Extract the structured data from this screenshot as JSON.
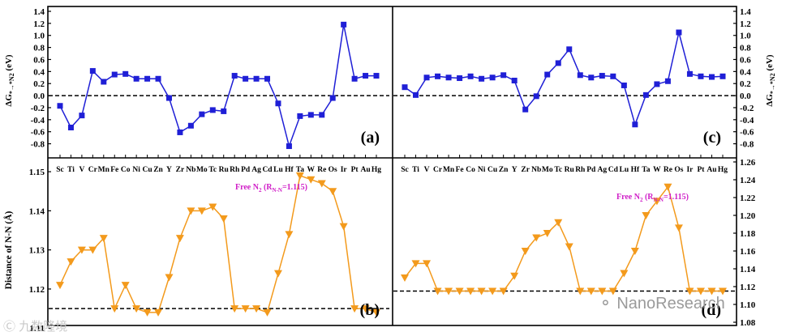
{
  "elements": [
    "Sc",
    "Ti",
    "V",
    "Cr",
    "Mn",
    "Fe",
    "Co",
    "Ni",
    "Cu",
    "Zn",
    "Y",
    "Zr",
    "Nb",
    "Mo",
    "Tc",
    "Ru",
    "Rh",
    "Pd",
    "Ag",
    "Cd",
    "Lu",
    "Hf",
    "Ta",
    "W",
    "Re",
    "Os",
    "Ir",
    "Pt",
    "Au",
    "Hg"
  ],
  "colors": {
    "energy": "#1f1fd6",
    "distance": "#f39a1c",
    "free_label": "#d020c8",
    "ref_line": "#000000"
  },
  "chart_data": [
    {
      "id": "a",
      "panel_label": "(a)",
      "type": "line",
      "title": "",
      "xlabel": "",
      "ylabel": "ΔG*→*N2 (eV)",
      "ylim": [
        -0.9,
        1.4
      ],
      "yticks": [
        -0.8,
        -0.6,
        -0.4,
        -0.2,
        0.0,
        0.2,
        0.4,
        0.6,
        0.8,
        1.0,
        1.2,
        1.4
      ],
      "tick_labels": [
        "-0.8",
        "-0.6",
        "-0.4",
        "-0.2",
        "0.0",
        "0.2",
        "0.4",
        "0.6",
        "0.8",
        "1.0",
        "1.2",
        "1.4"
      ],
      "show_category_ticks": true,
      "reference_line": 0.0,
      "marker": "square",
      "series": [
        {
          "name": "ΔG",
          "values": [
            -0.17,
            -0.53,
            -0.33,
            0.41,
            0.23,
            0.35,
            0.36,
            0.28,
            0.28,
            0.28,
            -0.04,
            -0.61,
            -0.5,
            -0.31,
            -0.24,
            -0.26,
            0.33,
            0.28,
            0.28,
            0.28,
            -0.13,
            -0.84,
            -0.34,
            -0.32,
            -0.32,
            -0.04,
            1.18,
            0.28,
            0.33,
            0.33
          ]
        }
      ]
    },
    {
      "id": "c",
      "panel_label": "(c)",
      "type": "line",
      "title": "",
      "xlabel": "",
      "ylabel": "ΔG*→*N2 (eV)",
      "ylim": [
        -0.9,
        1.4
      ],
      "yticks": [
        -0.8,
        -0.6,
        -0.4,
        -0.2,
        0.0,
        0.2,
        0.4,
        0.6,
        0.8,
        1.0,
        1.2,
        1.4
      ],
      "tick_labels": [
        "-0.8",
        "-0.6",
        "-0.4",
        "-0.2",
        "0.0",
        "0.2",
        "0.4",
        "0.6",
        "0.8",
        "1.0",
        "1.2",
        "1.4"
      ],
      "show_category_ticks": true,
      "reference_line": 0.0,
      "marker": "square",
      "series": [
        {
          "name": "ΔG",
          "values": [
            0.14,
            0.01,
            0.3,
            0.32,
            0.3,
            0.29,
            0.32,
            0.28,
            0.3,
            0.34,
            0.25,
            -0.23,
            -0.01,
            0.35,
            0.54,
            0.77,
            0.34,
            0.3,
            0.33,
            0.32,
            0.17,
            -0.48,
            0.01,
            0.19,
            0.24,
            1.05,
            0.36,
            0.32,
            0.31,
            0.32
          ]
        }
      ]
    },
    {
      "id": "b",
      "panel_label": "(b)",
      "type": "line",
      "title": "",
      "xlabel": "",
      "ylabel": "Distance of N-N (Å)",
      "ylim": [
        1.1115,
        1.1525
      ],
      "yticks": [
        1.11,
        1.12,
        1.13,
        1.14,
        1.15
      ],
      "tick_labels": [
        "1.11",
        "1.12",
        "1.13",
        "1.14",
        "1.15"
      ],
      "show_category_ticks": false,
      "reference_line": 1.115,
      "marker": "triangle-down",
      "reference_label": {
        "prefix": "Free N",
        "sub": "2",
        "mid": " (R",
        "sub2": "N-N",
        "suffix": "=1.115)"
      },
      "series": [
        {
          "name": "N-N distance",
          "values": [
            1.121,
            1.127,
            1.13,
            1.13,
            1.133,
            1.115,
            1.121,
            1.115,
            1.114,
            1.114,
            1.123,
            1.133,
            1.14,
            1.14,
            1.141,
            1.138,
            1.115,
            1.115,
            1.115,
            1.114,
            1.124,
            1.134,
            1.149,
            1.148,
            1.147,
            1.145,
            1.136,
            1.115,
            1.115,
            1.114
          ]
        }
      ]
    },
    {
      "id": "d",
      "panel_label": "(d)",
      "type": "line",
      "title": "",
      "xlabel": "",
      "ylabel": "Distance of N-N (Å)",
      "ylim": [
        1.08,
        1.26
      ],
      "yticks": [
        1.08,
        1.1,
        1.12,
        1.14,
        1.16,
        1.18,
        1.2,
        1.22,
        1.24,
        1.26
      ],
      "tick_labels": [
        "1.08",
        "1.10",
        "1.12",
        "1.14",
        "1.16",
        "1.18",
        "1.20",
        "1.22",
        "1.24",
        "1.26"
      ],
      "show_category_ticks": false,
      "reference_line": 1.115,
      "marker": "triangle-down",
      "reference_label": {
        "prefix": "Free N",
        "sub": "2",
        "mid": " (R",
        "sub2": "N-N",
        "suffix": "=1.115)"
      },
      "series": [
        {
          "name": "N-N distance",
          "values": [
            1.13,
            1.146,
            1.146,
            1.115,
            1.115,
            1.115,
            1.115,
            1.115,
            1.115,
            1.115,
            1.132,
            1.16,
            1.175,
            1.18,
            1.192,
            1.165,
            1.115,
            1.115,
            1.115,
            1.115,
            1.135,
            1.16,
            1.2,
            1.216,
            1.232,
            1.186,
            1.115,
            1.115,
            1.115,
            1.115
          ]
        }
      ]
    }
  ],
  "watermark": {
    "left_text": "九数隆境",
    "right_text": "NanoResearch"
  }
}
